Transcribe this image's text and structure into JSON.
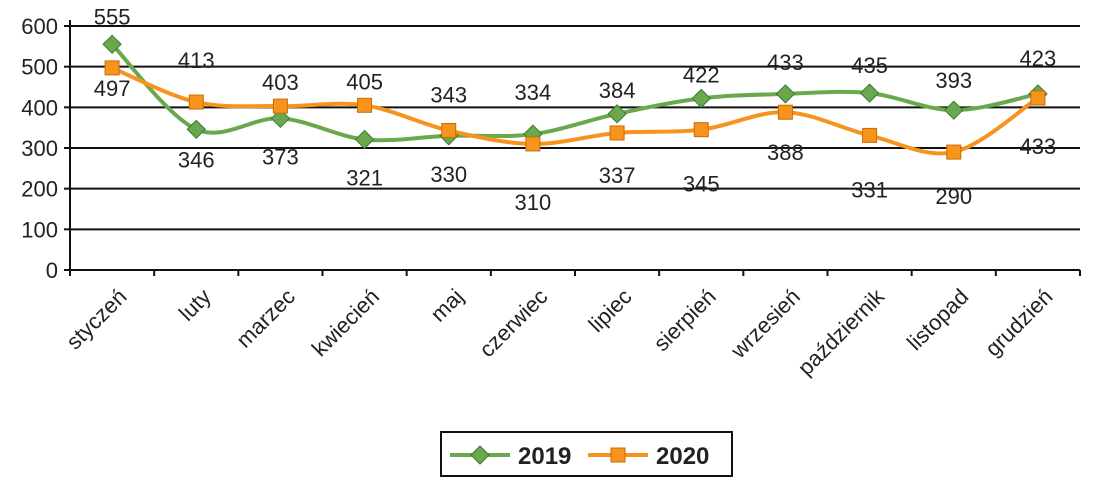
{
  "chart_data": {
    "type": "line",
    "categories": [
      "styczeń",
      "luty",
      "marzec",
      "kwiecień",
      "maj",
      "czerwiec",
      "lipiec",
      "sierpień",
      "wrzesień",
      "październik",
      "listopad",
      "grudzień"
    ],
    "series": [
      {
        "name": "2019",
        "color": "#6aa84f",
        "marker": "diamond",
        "values": [
          555,
          346,
          373,
          321,
          330,
          334,
          384,
          422,
          433,
          435,
          393,
          433
        ]
      },
      {
        "name": "2020",
        "color": "#f7941d",
        "marker": "square",
        "values": [
          497,
          413,
          403,
          405,
          343,
          310,
          337,
          345,
          388,
          331,
          290,
          423
        ]
      }
    ],
    "data_labels": [
      {
        "text": "555"
      },
      {
        "text": "497"
      },
      {
        "text": "413"
      },
      {
        "text": "346"
      },
      {
        "text": "403"
      },
      {
        "text": "373"
      },
      {
        "text": "405"
      },
      {
        "text": "321"
      },
      {
        "text": "343"
      },
      {
        "text": "330"
      },
      {
        "text": "334"
      },
      {
        "text": "310"
      },
      {
        "text": "384"
      },
      {
        "text": "337"
      },
      {
        "text": "422"
      },
      {
        "text": "345"
      },
      {
        "text": "433"
      },
      {
        "text": "388"
      },
      {
        "text": "435"
      },
      {
        "text": "331"
      },
      {
        "text": "393"
      },
      {
        "text": "290"
      },
      {
        "text": "423"
      },
      {
        "text": "433"
      }
    ],
    "yticks": [
      0,
      100,
      200,
      300,
      400,
      500,
      600
    ],
    "ylim": [
      0,
      600
    ],
    "grid": true,
    "legend": "bottom-center"
  }
}
